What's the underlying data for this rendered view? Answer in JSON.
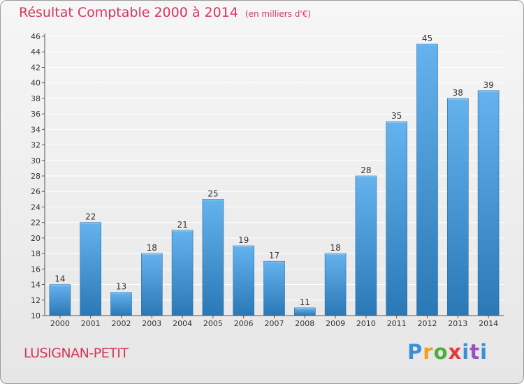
{
  "header": {
    "title": "Résultat Comptable 2000 à 2014",
    "subtitle": "(en milliers d'€)"
  },
  "footer": {
    "commune": "LUSIGNAN-PETIT",
    "logo_letters": [
      "P",
      "r",
      "o",
      "x",
      "i",
      "t",
      "i"
    ]
  },
  "colors": {
    "title": "#d6365c",
    "bar_top": "#64b2ee",
    "bar_bottom": "#2a78b5",
    "grid": "#ffffff"
  },
  "chart_data": {
    "type": "bar",
    "title": "Résultat Comptable 2000 à 2014",
    "subtitle": "(en milliers d'€)",
    "xlabel": "",
    "ylabel": "",
    "categories": [
      "2000",
      "2001",
      "2002",
      "2003",
      "2004",
      "2005",
      "2006",
      "2007",
      "2008",
      "2009",
      "2010",
      "2011",
      "2012",
      "2013",
      "2014"
    ],
    "values": [
      14,
      22,
      13,
      18,
      21,
      25,
      19,
      17,
      11,
      18,
      28,
      35,
      45,
      38,
      39
    ],
    "data_labels": [
      "14",
      "22",
      "13",
      "18",
      "21",
      "25",
      "19",
      "17",
      "11",
      "18",
      "28",
      "35",
      "45",
      "38",
      "39"
    ],
    "ylim": [
      10,
      46
    ],
    "yticks": [
      10,
      12,
      14,
      16,
      18,
      20,
      22,
      24,
      26,
      28,
      30,
      32,
      34,
      36,
      38,
      40,
      42,
      44,
      46
    ],
    "ytick_labels": [
      "10",
      "12",
      "14",
      "16",
      "18",
      "20",
      "22",
      "24",
      "26",
      "28",
      "30",
      "32",
      "34",
      "36",
      "38",
      "40",
      "42",
      "44",
      "46"
    ],
    "grid": true,
    "legend": "none"
  }
}
